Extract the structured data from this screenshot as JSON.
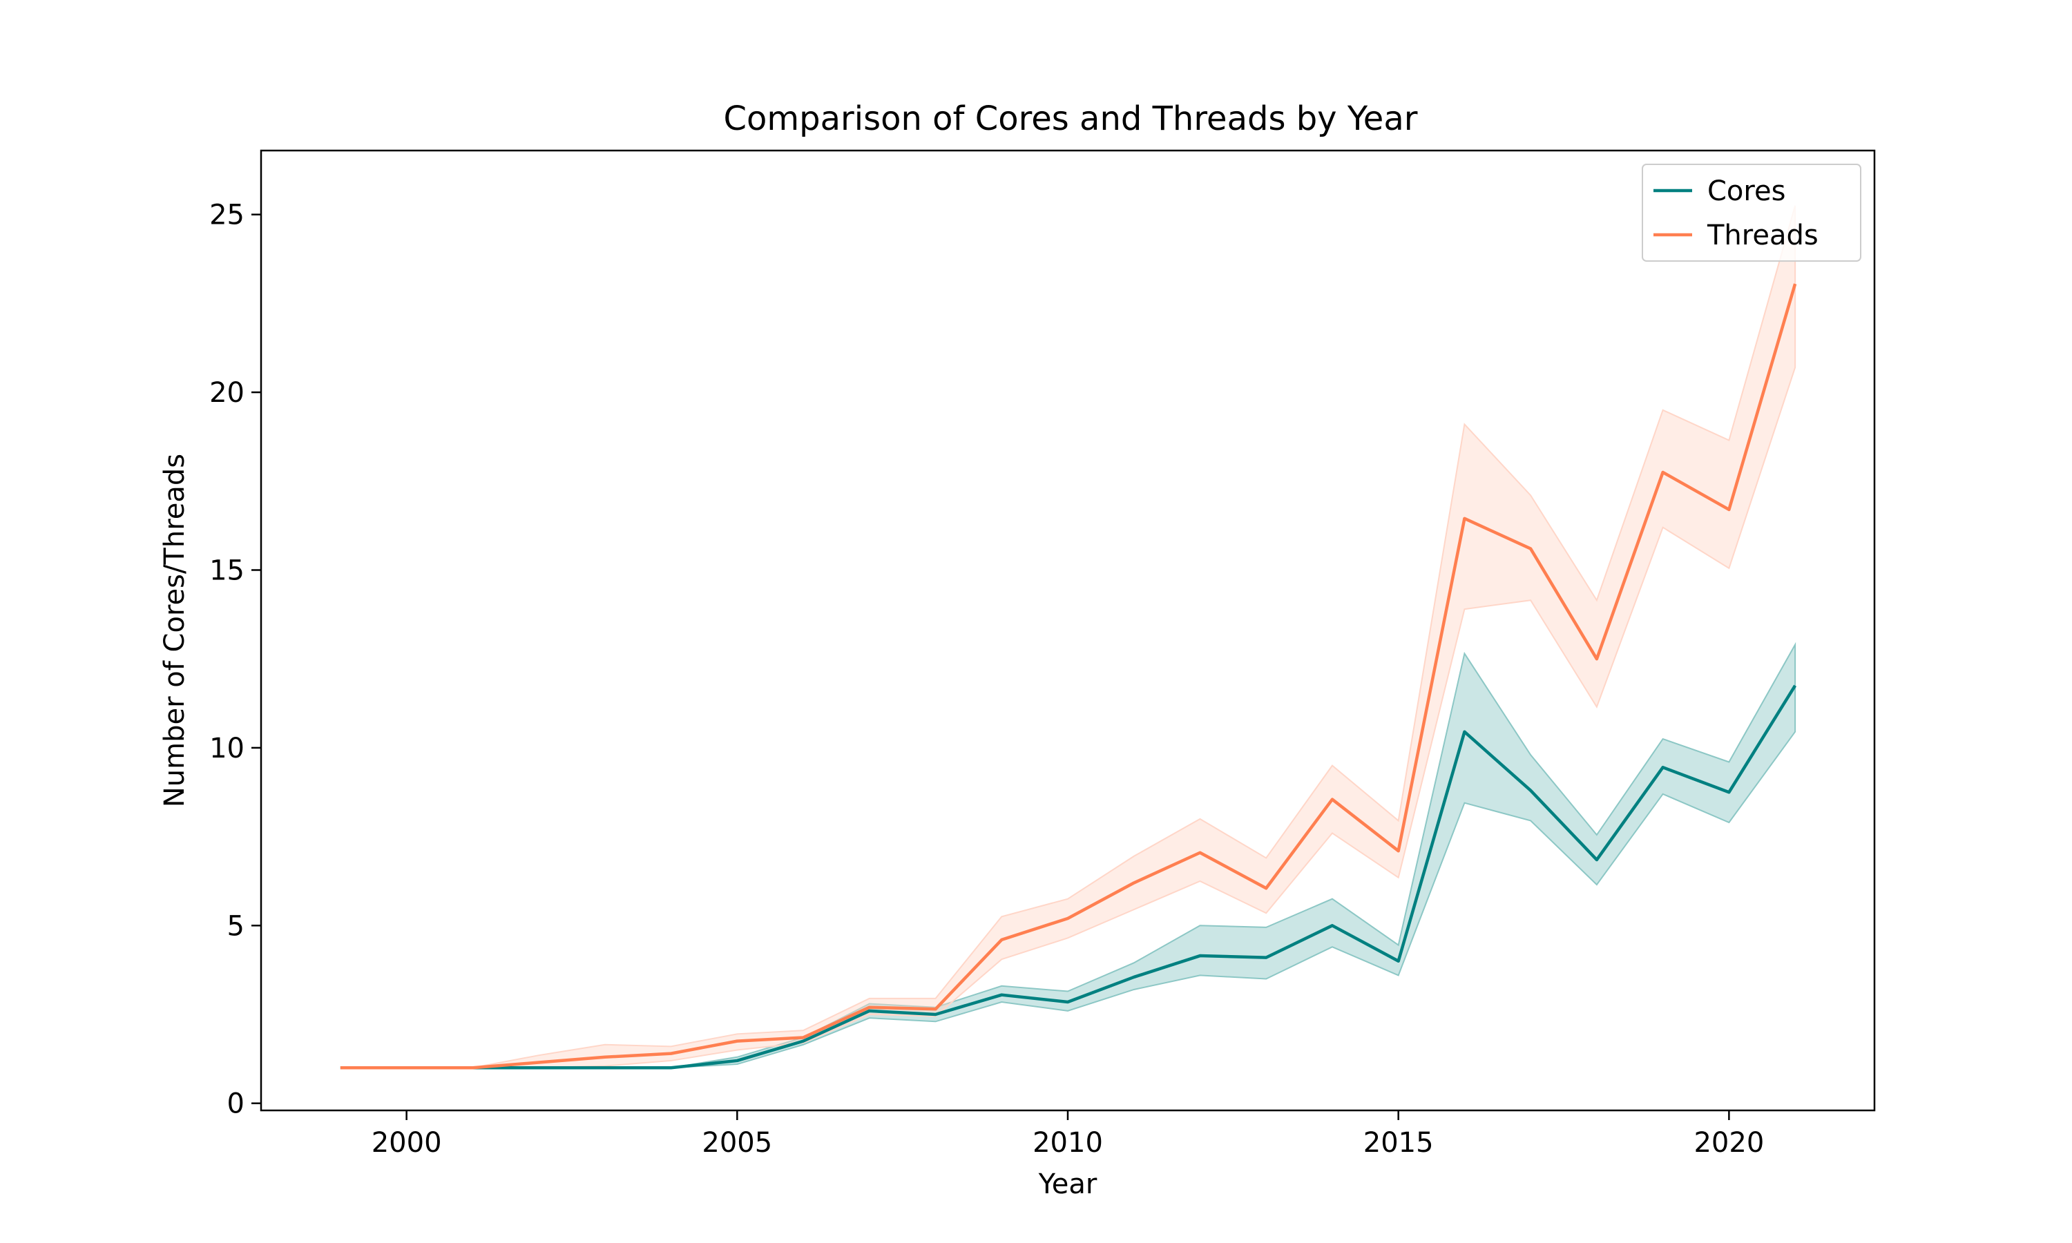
{
  "chart_data": {
    "type": "line",
    "title": "Comparison of Cores and Threads by Year",
    "xlabel": "Year",
    "ylabel": "Number of Cores/Threads",
    "xlim": [
      1997.8,
      2022.2
    ],
    "ylim": [
      -0.2,
      26.8
    ],
    "xticks": [
      2000,
      2005,
      2010,
      2015,
      2020
    ],
    "yticks": [
      0,
      5,
      10,
      15,
      20,
      25
    ],
    "grid": false,
    "legend_position": "top-right",
    "x": [
      1999,
      2000,
      2001,
      2002,
      2003,
      2004,
      2005,
      2006,
      2007,
      2008,
      2009,
      2010,
      2011,
      2012,
      2013,
      2014,
      2015,
      2016,
      2017,
      2018,
      2019,
      2020,
      2021
    ],
    "series": [
      {
        "name": "Cores",
        "color": "#008080",
        "band_color": "#8cc7c5",
        "values": [
          1.0,
          1.0,
          1.0,
          1.0,
          1.0,
          1.0,
          1.2,
          1.75,
          2.6,
          2.5,
          3.05,
          2.85,
          3.55,
          4.15,
          4.1,
          5.0,
          4.0,
          10.45,
          8.8,
          6.85,
          9.45,
          8.75,
          11.75
        ],
        "lower": [
          1.0,
          1.0,
          1.0,
          1.0,
          1.0,
          1.0,
          1.1,
          1.65,
          2.4,
          2.3,
          2.85,
          2.6,
          3.2,
          3.6,
          3.5,
          4.4,
          3.6,
          8.45,
          7.95,
          6.15,
          8.7,
          7.9,
          10.45
        ],
        "upper": [
          1.0,
          1.0,
          1.0,
          1.0,
          1.0,
          1.0,
          1.3,
          1.85,
          2.8,
          2.7,
          3.3,
          3.15,
          3.95,
          5.0,
          4.95,
          5.75,
          4.45,
          12.65,
          9.8,
          7.55,
          10.25,
          9.6,
          12.9
        ]
      },
      {
        "name": "Threads",
        "color": "#ff7f50",
        "band_color": "#ffd6c8",
        "values": [
          1.0,
          1.0,
          1.0,
          1.15,
          1.3,
          1.4,
          1.75,
          1.85,
          2.7,
          2.65,
          4.6,
          5.2,
          6.2,
          7.05,
          6.05,
          8.55,
          7.1,
          16.45,
          15.6,
          12.5,
          17.75,
          16.7,
          23.05
        ],
        "lower": [
          1.0,
          1.0,
          1.0,
          1.0,
          1.05,
          1.2,
          1.5,
          1.7,
          2.5,
          2.45,
          4.05,
          4.65,
          5.45,
          6.25,
          5.35,
          7.6,
          6.35,
          13.9,
          14.15,
          11.15,
          16.2,
          15.05,
          20.7
        ],
        "upper": [
          1.0,
          1.0,
          1.0,
          1.35,
          1.65,
          1.6,
          1.95,
          2.05,
          2.95,
          2.95,
          5.25,
          5.75,
          6.95,
          8.0,
          6.9,
          9.5,
          7.95,
          19.1,
          17.1,
          14.15,
          19.5,
          18.65,
          25.25
        ]
      }
    ]
  }
}
